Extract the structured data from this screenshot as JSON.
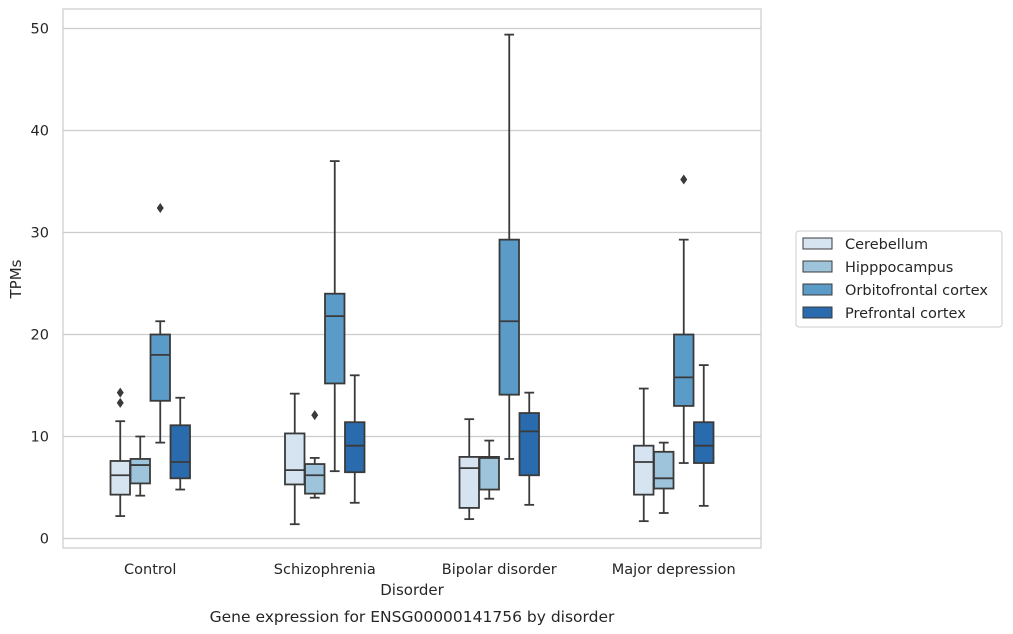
{
  "chart_data": {
    "type": "box",
    "title": "Gene expression for ENSG00000141756 by disorder",
    "xlabel": "Disorder",
    "ylabel": "TPMs",
    "ylim": [
      -1,
      52
    ],
    "yticks": [
      0,
      10,
      20,
      30,
      40,
      50
    ],
    "grid": "horizontal",
    "legend_position": "right",
    "categories": [
      "Control",
      "Schizophrenia",
      "Bipolar disorder",
      "Major depression"
    ],
    "series": [
      {
        "name": "Cerebellum",
        "color": "#d6e4f1",
        "boxes": [
          {
            "whisker_low": 2.2,
            "q1": 4.3,
            "median": 6.2,
            "q3": 7.6,
            "whisker_high": 11.5,
            "outliers": [
              13.3,
              14.3
            ]
          },
          {
            "whisker_low": 1.4,
            "q1": 5.3,
            "median": 6.7,
            "q3": 10.3,
            "whisker_high": 14.2,
            "outliers": []
          },
          {
            "whisker_low": 1.9,
            "q1": 3.0,
            "median": 6.9,
            "q3": 8.0,
            "whisker_high": 11.7,
            "outliers": []
          },
          {
            "whisker_low": 1.7,
            "q1": 4.3,
            "median": 7.5,
            "q3": 9.1,
            "whisker_high": 14.7,
            "outliers": []
          }
        ]
      },
      {
        "name": "Hipppocampus",
        "color": "#9ec4dc",
        "boxes": [
          {
            "whisker_low": 4.2,
            "q1": 5.4,
            "median": 7.2,
            "q3": 7.8,
            "whisker_high": 10.0,
            "outliers": []
          },
          {
            "whisker_low": 4.0,
            "q1": 4.4,
            "median": 6.2,
            "q3": 7.3,
            "whisker_high": 7.9,
            "outliers": [
              12.1
            ]
          },
          {
            "whisker_low": 3.9,
            "q1": 4.8,
            "median": 7.9,
            "q3": 8.0,
            "whisker_high": 9.6,
            "outliers": []
          },
          {
            "whisker_low": 2.5,
            "q1": 4.9,
            "median": 5.9,
            "q3": 8.5,
            "whisker_high": 9.4,
            "outliers": []
          }
        ]
      },
      {
        "name": "Orbitofrontal cortex",
        "color": "#5a9bc8",
        "boxes": [
          {
            "whisker_low": 9.4,
            "q1": 13.5,
            "median": 18.0,
            "q3": 20.0,
            "whisker_high": 21.3,
            "outliers": [
              32.4
            ]
          },
          {
            "whisker_low": 6.6,
            "q1": 15.2,
            "median": 21.8,
            "q3": 24.0,
            "whisker_high": 37.0,
            "outliers": []
          },
          {
            "whisker_low": 7.8,
            "q1": 14.1,
            "median": 21.3,
            "q3": 29.3,
            "whisker_high": 49.4,
            "outliers": []
          },
          {
            "whisker_low": 7.4,
            "q1": 13.0,
            "median": 15.8,
            "q3": 20.0,
            "whisker_high": 29.3,
            "outliers": [
              35.2
            ]
          }
        ]
      },
      {
        "name": "Prefrontal cortex",
        "color": "#2a6bad",
        "boxes": [
          {
            "whisker_low": 4.8,
            "q1": 5.9,
            "median": 7.5,
            "q3": 11.1,
            "whisker_high": 13.8,
            "outliers": []
          },
          {
            "whisker_low": 3.5,
            "q1": 6.5,
            "median": 9.1,
            "q3": 11.4,
            "whisker_high": 16.0,
            "outliers": []
          },
          {
            "whisker_low": 3.3,
            "q1": 6.2,
            "median": 10.5,
            "q3": 12.3,
            "whisker_high": 14.3,
            "outliers": []
          },
          {
            "whisker_low": 3.2,
            "q1": 7.4,
            "median": 9.1,
            "q3": 11.4,
            "whisker_high": 17.0,
            "outliers": []
          }
        ]
      }
    ]
  }
}
